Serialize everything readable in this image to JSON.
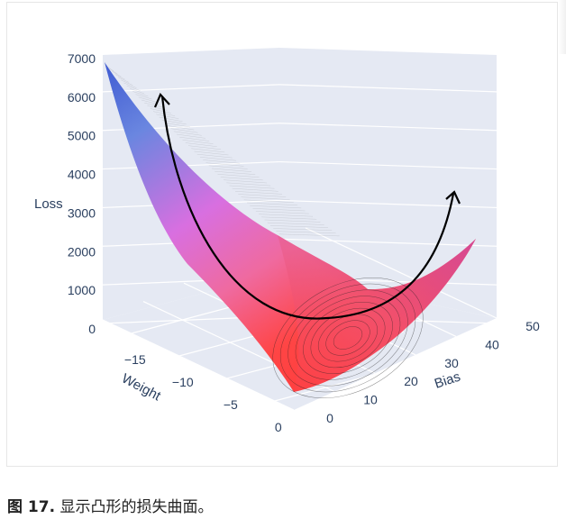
{
  "chart_data": {
    "type": "surface",
    "title": "",
    "z_axis": {
      "label": "Loss",
      "ticks": [
        "0",
        "1000",
        "2000",
        "3000",
        "4000",
        "5000",
        "6000",
        "7000"
      ],
      "range": [
        0,
        7000
      ]
    },
    "y_axis": {
      "label": "Weight",
      "ticks": [
        "−15",
        "−10",
        "−5",
        "0"
      ],
      "range": [
        -18,
        2
      ]
    },
    "x_axis": {
      "label": "Bias",
      "ticks": [
        "0",
        "10",
        "20",
        "30",
        "40",
        "50"
      ],
      "range": [
        0,
        50
      ]
    },
    "surface": {
      "shape": "convex bowl",
      "peak_loss": 6800,
      "minimum_loss": 0,
      "minimum_at": {
        "weight": -3,
        "bias": 18
      },
      "colors": [
        "#4a5fd6",
        "#e063e6",
        "#ff3b3b"
      ]
    },
    "annotation": "U-shaped arrow indicating the convex loss curve"
  },
  "caption": {
    "label": "图 17.",
    "text": "显示凸形的损失曲面。"
  }
}
